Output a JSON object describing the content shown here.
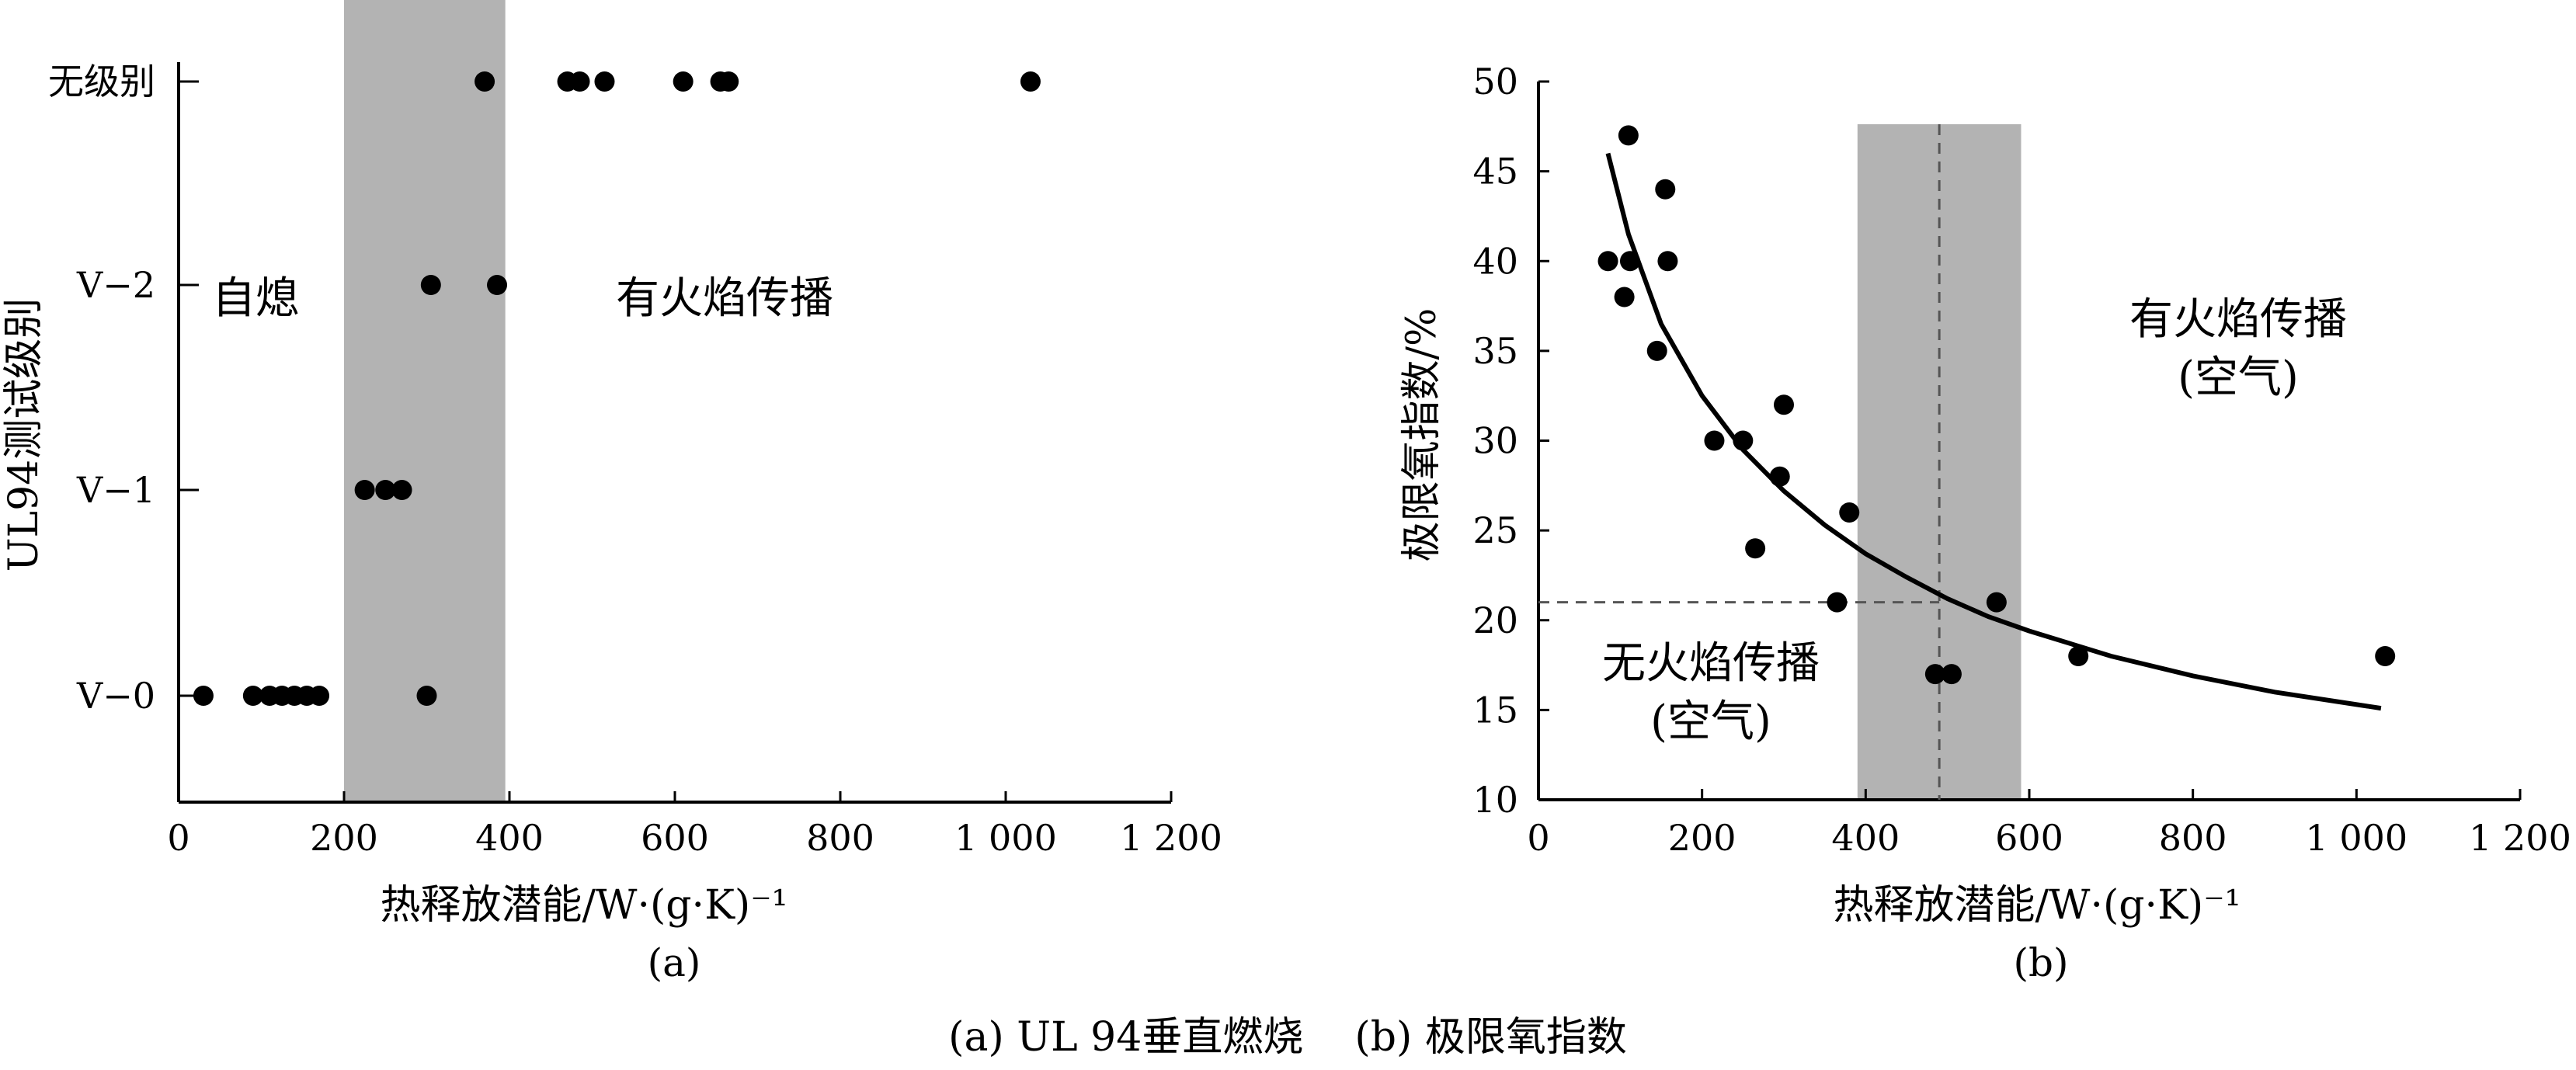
{
  "figure_caption": "(a) UL 94垂直燃烧    (b) 极限氧指数",
  "chart_data": [
    {
      "type": "scatter",
      "panel_label": "(a)",
      "xlabel": "热释放潜能/W·(g·K)⁻¹",
      "ylabel": "UL94测试级别",
      "xlim": [
        0,
        1200
      ],
      "x_ticks": [
        0,
        200,
        400,
        600,
        800,
        1000,
        1200
      ],
      "x_tick_labels": [
        "0",
        "200",
        "400",
        "600",
        "800",
        "1 000",
        "1 200"
      ],
      "y_categories": [
        "V-0",
        "V-1",
        "V-2",
        "无级别"
      ],
      "y_tick_labels": [
        "V−0",
        "V−1",
        "V−2",
        "无级别"
      ],
      "shaded_region": [
        200,
        395
      ],
      "annotations": [
        "自熄",
        "有火焰传播"
      ],
      "points": [
        {
          "x": 30,
          "y": "V-0"
        },
        {
          "x": 90,
          "y": "V-0"
        },
        {
          "x": 110,
          "y": "V-0"
        },
        {
          "x": 125,
          "y": "V-0"
        },
        {
          "x": 140,
          "y": "V-0"
        },
        {
          "x": 155,
          "y": "V-0"
        },
        {
          "x": 170,
          "y": "V-0"
        },
        {
          "x": 300,
          "y": "V-0"
        },
        {
          "x": 225,
          "y": "V-1"
        },
        {
          "x": 250,
          "y": "V-1"
        },
        {
          "x": 270,
          "y": "V-1"
        },
        {
          "x": 305,
          "y": "V-2"
        },
        {
          "x": 385,
          "y": "V-2"
        },
        {
          "x": 370,
          "y": "无级别"
        },
        {
          "x": 470,
          "y": "无级别"
        },
        {
          "x": 485,
          "y": "无级别"
        },
        {
          "x": 515,
          "y": "无级别"
        },
        {
          "x": 610,
          "y": "无级别"
        },
        {
          "x": 655,
          "y": "无级别"
        },
        {
          "x": 665,
          "y": "无级别"
        },
        {
          "x": 1030,
          "y": "无级别"
        }
      ]
    },
    {
      "type": "scatter",
      "panel_label": "(b)",
      "xlabel": "热释放潜能/W·(g·K)⁻¹",
      "ylabel": "极限氧指数/%",
      "xlim": [
        0,
        1200
      ],
      "ylim": [
        10,
        50
      ],
      "x_ticks": [
        0,
        200,
        400,
        600,
        800,
        1000,
        1200
      ],
      "x_tick_labels": [
        "0",
        "200",
        "400",
        "600",
        "800",
        "1 000",
        "1 200"
      ],
      "y_ticks": [
        10,
        15,
        20,
        25,
        30,
        35,
        40,
        45,
        50
      ],
      "shaded_region": [
        390,
        590
      ],
      "reference_lines": {
        "x": 490,
        "y": 21
      },
      "annotations": [
        {
          "line1": "有火焰传播",
          "line2": "(空气)"
        },
        {
          "line1": "无火焰传播",
          "line2": "(空气)"
        }
      ],
      "points": [
        {
          "x": 85,
          "y": 40
        },
        {
          "x": 105,
          "y": 38
        },
        {
          "x": 110,
          "y": 47
        },
        {
          "x": 112,
          "y": 40
        },
        {
          "x": 145,
          "y": 35
        },
        {
          "x": 155,
          "y": 44
        },
        {
          "x": 158,
          "y": 40
        },
        {
          "x": 215,
          "y": 30
        },
        {
          "x": 250,
          "y": 30
        },
        {
          "x": 265,
          "y": 24
        },
        {
          "x": 295,
          "y": 28
        },
        {
          "x": 300,
          "y": 32
        },
        {
          "x": 365,
          "y": 21
        },
        {
          "x": 380,
          "y": 26
        },
        {
          "x": 485,
          "y": 17
        },
        {
          "x": 505,
          "y": 17
        },
        {
          "x": 560,
          "y": 21
        },
        {
          "x": 660,
          "y": 18
        },
        {
          "x": 1035,
          "y": 18
        }
      ],
      "fit_curve": {
        "x": [
          85,
          110,
          150,
          200,
          250,
          300,
          350,
          400,
          450,
          500,
          550,
          600,
          700,
          800,
          900,
          1030
        ],
        "y": [
          46,
          41.5,
          36.5,
          32.5,
          29.5,
          27.2,
          25.3,
          23.7,
          22.4,
          21.2,
          20.2,
          19.4,
          18.0,
          16.9,
          16.0,
          15.1
        ]
      }
    }
  ]
}
